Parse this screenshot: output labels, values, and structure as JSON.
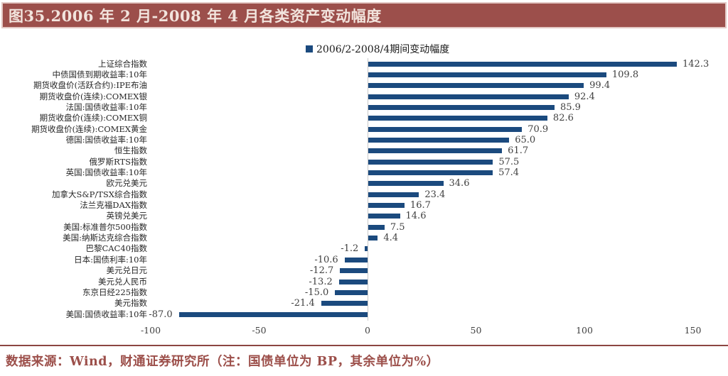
{
  "title": {
    "text": "图35.2006 年 2 月-2008 年 4 月各类资产变动幅度"
  },
  "legend": {
    "label": "2006/2-2008/4期间变动幅度",
    "swatch_color": "#1b4a7e"
  },
  "chart_data": {
    "type": "bar",
    "orientation": "horizontal",
    "title": "图35.2006 年 2 月-2008 年 4 月各类资产变动幅度",
    "legend": [
      "2006/2-2008/4期间变动幅度"
    ],
    "categories": [
      "上证综合指数",
      "中债国债到期收益率:10年",
      "期货收盘价(活跃合约):IPE布油",
      "期货收盘价(连续):COMEX银",
      "法国:国债收益率:10年",
      "期货收盘价(连续):COMEX铜",
      "期货收盘价(连续):COMEX黄金",
      "德国:国债收益率:10年",
      "恒生指数",
      "俄罗斯RTS指数",
      "英国:国债收益率:10年",
      "欧元兑美元",
      "加拿大S&P/TSX综合指数",
      "法兰克福DAX指数",
      "英镑兑美元",
      "美国:标准普尔500指数",
      "美国:纳斯达克综合指数",
      "巴黎CAC40指数",
      "日本:国债利率:10年",
      "美元兑日元",
      "美元兑人民币",
      "东京日经225指数",
      "美元指数",
      "美国:国债收益率:10年"
    ],
    "values": [
      142.3,
      109.8,
      99.4,
      92.4,
      85.9,
      82.6,
      70.9,
      65.0,
      61.7,
      57.5,
      57.4,
      34.6,
      23.4,
      16.7,
      14.6,
      7.5,
      4.4,
      -1.2,
      -10.6,
      -12.7,
      -13.2,
      -15.0,
      -21.4,
      -87.0
    ],
    "xlim": [
      -100,
      150
    ],
    "x_ticks": [
      -100,
      -50,
      0,
      50,
      100,
      150
    ],
    "bar_color": "#1b4a7e",
    "grid": false,
    "legend_position": "top-center",
    "value_labels_shown": true
  },
  "footer": {
    "text": "数据来源：Wind，财通证券研究所（注：国债单位为 BP，其余单位为%）"
  },
  "colors": {
    "title_bg": "#9c4f4b",
    "title_text": "#f2e4dd",
    "bar": "#1b4a7e",
    "footer_text": "#9c4f4a",
    "separator": "#8c4642",
    "axis_line": "#c9c9c9"
  }
}
